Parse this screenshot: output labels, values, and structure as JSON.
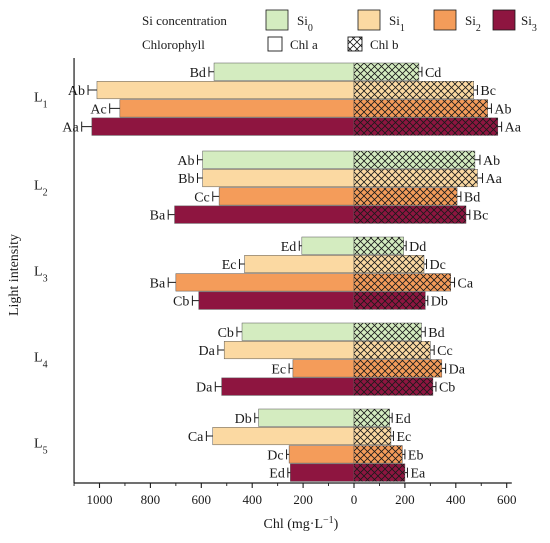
{
  "chart_data": {
    "type": "bar",
    "orientation": "horizontal-diverging",
    "xlabel": "Chl (mg·L",
    "xlabel_sup": "−1",
    "xlabel_tail": ")",
    "ylabel": "Light intensity",
    "xlim": [
      -1100,
      620
    ],
    "x_ticks": [
      -1000,
      -800,
      -600,
      -400,
      -200,
      0,
      200,
      400,
      600
    ],
    "x_tick_labels": [
      "1000",
      "800",
      "600",
      "400",
      "200",
      "0",
      "200",
      "400",
      "600"
    ],
    "legend": {
      "title_si": "Si concentration",
      "title_chl": "Chlorophyll",
      "si_entries": [
        {
          "base": "Si",
          "sub": "0",
          "color": "#d4ecc0"
        },
        {
          "base": "Si",
          "sub": "1",
          "color": "#fbd9a2"
        },
        {
          "base": "Si",
          "sub": "2",
          "color": "#f49c5a"
        },
        {
          "base": "Si",
          "sub": "3",
          "color": "#8e1540"
        }
      ],
      "chl_entries": [
        {
          "label": "Chl a",
          "pattern": "solid"
        },
        {
          "label": "Chl b",
          "pattern": "crosshatch"
        }
      ]
    },
    "groups": [
      {
        "base": "L",
        "sub": "1",
        "bars": [
          {
            "chl_a": 550,
            "chl_b": 255,
            "err_a": 20,
            "err_b": 12,
            "label_a": "Bd",
            "label_b": "Cd"
          },
          {
            "chl_a": 1010,
            "chl_b": 470,
            "err_a": 35,
            "err_b": 15,
            "label_a": "Ab",
            "label_b": "Bc"
          },
          {
            "chl_a": 920,
            "chl_b": 525,
            "err_a": 40,
            "err_b": 15,
            "label_a": "Ac",
            "label_b": "Ab"
          },
          {
            "chl_a": 1030,
            "chl_b": 565,
            "err_a": 40,
            "err_b": 15,
            "label_a": "Aa",
            "label_b": "Aa"
          }
        ]
      },
      {
        "base": "L",
        "sub": "2",
        "bars": [
          {
            "chl_a": 595,
            "chl_b": 475,
            "err_a": 20,
            "err_b": 20,
            "label_a": "Ab",
            "label_b": "Ab"
          },
          {
            "chl_a": 595,
            "chl_b": 485,
            "err_a": 20,
            "err_b": 20,
            "label_a": "Bb",
            "label_b": "Aa"
          },
          {
            "chl_a": 530,
            "chl_b": 405,
            "err_a": 25,
            "err_b": 15,
            "label_a": "Cc",
            "label_b": "Bd"
          },
          {
            "chl_a": 705,
            "chl_b": 440,
            "err_a": 25,
            "err_b": 15,
            "label_a": "Ba",
            "label_b": "Bc"
          }
        ]
      },
      {
        "base": "L",
        "sub": "3",
        "bars": [
          {
            "chl_a": 205,
            "chl_b": 195,
            "err_a": 10,
            "err_b": 10,
            "label_a": "Ed",
            "label_b": "Dd"
          },
          {
            "chl_a": 430,
            "chl_b": 275,
            "err_a": 20,
            "err_b": 10,
            "label_a": "Ec",
            "label_b": "Dc"
          },
          {
            "chl_a": 700,
            "chl_b": 380,
            "err_a": 30,
            "err_b": 15,
            "label_a": "Ba",
            "label_b": "Ca"
          },
          {
            "chl_a": 610,
            "chl_b": 280,
            "err_a": 25,
            "err_b": 10,
            "label_a": "Cb",
            "label_b": "Db"
          }
        ]
      },
      {
        "base": "L",
        "sub": "4",
        "bars": [
          {
            "chl_a": 440,
            "chl_b": 265,
            "err_a": 20,
            "err_b": 15,
            "label_a": "Cb",
            "label_b": "Bd"
          },
          {
            "chl_a": 510,
            "chl_b": 300,
            "err_a": 25,
            "err_b": 15,
            "label_a": "Da",
            "label_b": "Cc"
          },
          {
            "chl_a": 240,
            "chl_b": 345,
            "err_a": 15,
            "err_b": 15,
            "label_a": "Ec",
            "label_b": "Da"
          },
          {
            "chl_a": 520,
            "chl_b": 310,
            "err_a": 25,
            "err_b": 12,
            "label_a": "Da",
            "label_b": "Cb"
          }
        ]
      },
      {
        "base": "L",
        "sub": "5",
        "bars": [
          {
            "chl_a": 375,
            "chl_b": 140,
            "err_a": 15,
            "err_b": 10,
            "label_a": "Db",
            "label_b": "Ed"
          },
          {
            "chl_a": 555,
            "chl_b": 145,
            "err_a": 25,
            "err_b": 10,
            "label_a": "Ca",
            "label_b": "Ec"
          },
          {
            "chl_a": 255,
            "chl_b": 190,
            "err_a": 10,
            "err_b": 10,
            "label_a": "Dc",
            "label_b": "Eb"
          },
          {
            "chl_a": 250,
            "chl_b": 200,
            "err_a": 10,
            "err_b": 10,
            "label_a": "Ed",
            "label_b": "Ea"
          }
        ]
      }
    ]
  }
}
